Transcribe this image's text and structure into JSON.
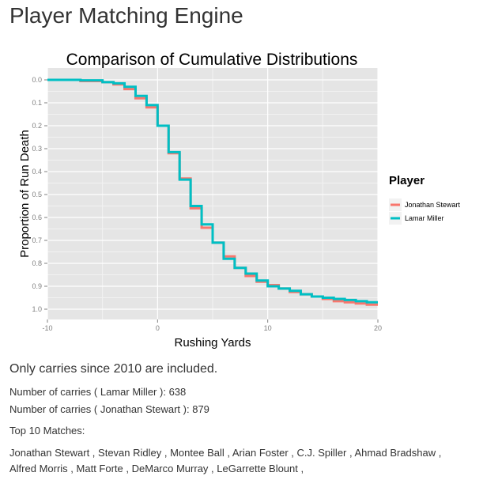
{
  "page": {
    "title": "Player Matching Engine",
    "notice": "Only carries since 2010 are included.",
    "carries": [
      {
        "label": "Number of carries ( Lamar Miller ):",
        "value": "638"
      },
      {
        "label": "Number of carries ( Jonathan Stewart ):",
        "value": "879"
      }
    ],
    "matches_heading": "Top 10 Matches:",
    "matches": [
      "Jonathan Stewart",
      "Stevan Ridley",
      "Montee Ball",
      "Arian Foster",
      "C.J. Spiller",
      "Ahmad Bradshaw",
      "Alfred Morris",
      "Matt Forte",
      "DeMarco Murray",
      "LeGarrette Blount"
    ],
    "separator": " , "
  },
  "chart_data": {
    "type": "line",
    "step": true,
    "title": "Comparison of Cumulative Distributions",
    "xlabel": "Rushing Yards",
    "ylabel": "Proportion of Run Death",
    "xlim": [
      -10,
      20
    ],
    "ylim": [
      0,
      1.04
    ],
    "y_reversed": true,
    "xticks": [
      -10,
      0,
      10,
      20
    ],
    "yticks": [
      "0.0",
      "0.1",
      "0.2",
      "0.3",
      "0.4",
      "0.5",
      "0.6",
      "0.7",
      "0.8",
      "0.9",
      "1.0"
    ],
    "grid": true,
    "background": "#e5e5e5",
    "legend": {
      "title": "Player",
      "position": "right"
    },
    "series": [
      {
        "name": "Jonathan Stewart",
        "color": "#f8766d",
        "x": [
          -10,
          -7,
          -5,
          -4,
          -3,
          -2,
          -1,
          0,
          1,
          2,
          3,
          4,
          5,
          6,
          7,
          8,
          9,
          10,
          11,
          12,
          13,
          14,
          15,
          16,
          17,
          18,
          19,
          20
        ],
        "y": [
          0,
          0.005,
          0.01,
          0.02,
          0.04,
          0.08,
          0.12,
          0.2,
          0.32,
          0.43,
          0.56,
          0.645,
          0.71,
          0.77,
          0.82,
          0.855,
          0.88,
          0.895,
          0.91,
          0.925,
          0.935,
          0.945,
          0.955,
          0.965,
          0.97,
          0.975,
          0.98,
          0.98
        ]
      },
      {
        "name": "Lamar Miller",
        "color": "#00bfc4",
        "x": [
          -10,
          -7,
          -5,
          -4,
          -3,
          -2,
          -1,
          0,
          1,
          2,
          3,
          4,
          5,
          6,
          7,
          8,
          9,
          10,
          11,
          12,
          13,
          14,
          15,
          16,
          17,
          18,
          19,
          20
        ],
        "y": [
          0,
          0.002,
          0.01,
          0.015,
          0.03,
          0.07,
          0.11,
          0.2,
          0.315,
          0.435,
          0.55,
          0.63,
          0.71,
          0.78,
          0.82,
          0.845,
          0.875,
          0.9,
          0.91,
          0.92,
          0.935,
          0.945,
          0.95,
          0.955,
          0.96,
          0.965,
          0.97,
          0.97
        ]
      }
    ]
  }
}
